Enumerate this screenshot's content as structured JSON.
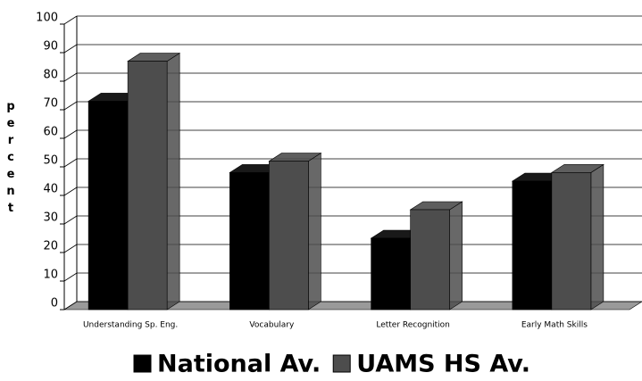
{
  "chart_data": {
    "type": "bar3d",
    "y_axis_label": "percent",
    "categories": [
      "Understanding Sp. Eng.",
      "Vocabulary",
      "Letter Recognition",
      "Early Math Skills"
    ],
    "series": [
      {
        "name": "National Av.",
        "color": "#000000",
        "values": [
          73,
          48,
          25,
          45
        ]
      },
      {
        "name": "UAMS HS Av.",
        "color": "#4d4d4d",
        "values": [
          87,
          52,
          35,
          48
        ]
      }
    ],
    "ylim": [
      0,
      100
    ],
    "yticks": [
      0,
      10,
      20,
      30,
      40,
      50,
      60,
      70,
      80,
      90,
      100
    ],
    "grid": true,
    "legend": "bottom"
  }
}
